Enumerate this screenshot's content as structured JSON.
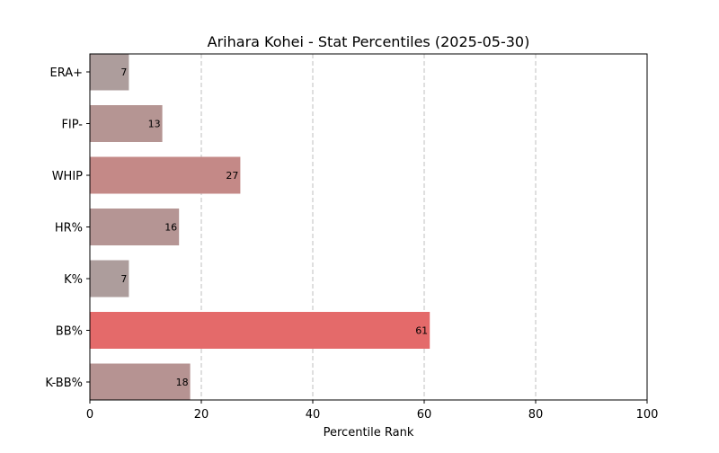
{
  "chart_data": {
    "type": "bar",
    "orientation": "horizontal",
    "title": "Arihara Kohei - Stat Percentiles (2025-05-30)",
    "xlabel": "Percentile Rank",
    "ylabel": "",
    "xlim": [
      0,
      100
    ],
    "xticks": [
      0,
      20,
      40,
      60,
      80,
      100
    ],
    "grid": "x-dashed",
    "categories": [
      "ERA+",
      "FIP-",
      "WHIP",
      "HR%",
      "K%",
      "BB%",
      "K-BB%"
    ],
    "values": [
      7,
      13,
      27,
      16,
      7,
      61,
      18
    ],
    "bar_colors": [
      "#ad9d9c",
      "#b59593",
      "#c48987",
      "#b59594",
      "#ad9d9c",
      "#e46a6a",
      "#b69392"
    ]
  }
}
